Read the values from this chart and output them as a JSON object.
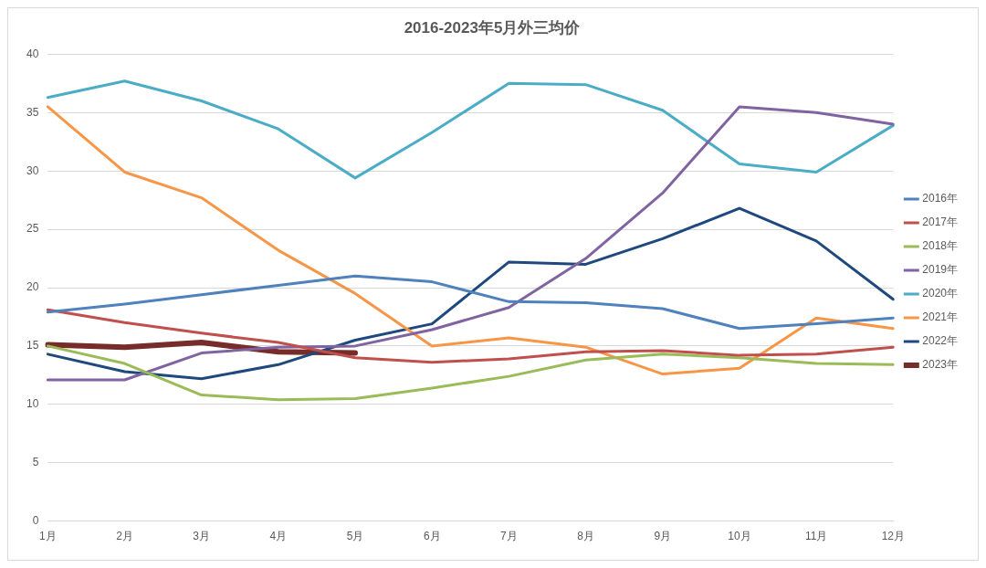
{
  "chart_data": {
    "type": "line",
    "title": "2016-2023年5月外三均价",
    "categories": [
      "1月",
      "2月",
      "3月",
      "4月",
      "5月",
      "6月",
      "7月",
      "8月",
      "9月",
      "10月",
      "11月",
      "12月"
    ],
    "ylim": [
      0,
      40
    ],
    "yticks": [
      0,
      5,
      10,
      15,
      20,
      25,
      30,
      35,
      40
    ],
    "grid": "y",
    "legend": "right",
    "marker": "none",
    "line_style": "solid",
    "series": [
      {
        "name": "2016年",
        "color": "#4f81bd",
        "values": [
          17.9,
          18.6,
          19.4,
          20.2,
          21.0,
          20.5,
          18.8,
          18.7,
          18.2,
          16.5,
          16.9,
          17.4
        ]
      },
      {
        "name": "2017年",
        "color": "#c0504d",
        "values": [
          18.1,
          17.0,
          16.1,
          15.3,
          14.0,
          13.6,
          13.9,
          14.5,
          14.6,
          14.2,
          14.3,
          14.9
        ]
      },
      {
        "name": "2018年",
        "color": "#9bbb59",
        "values": [
          15.0,
          13.5,
          10.8,
          10.4,
          10.5,
          11.4,
          12.4,
          13.8,
          14.3,
          14.0,
          13.5,
          13.4
        ]
      },
      {
        "name": "2019年",
        "color": "#8064a2",
        "values": [
          12.1,
          12.1,
          14.4,
          14.9,
          15.0,
          16.4,
          18.3,
          22.5,
          28.1,
          35.5,
          35.0,
          34.0
        ]
      },
      {
        "name": "2020年",
        "color": "#4bacc6",
        "values": [
          36.3,
          37.7,
          36.0,
          33.6,
          29.4,
          33.3,
          37.5,
          37.4,
          35.2,
          30.6,
          29.9,
          33.9
        ]
      },
      {
        "name": "2021年",
        "color": "#f79646",
        "values": [
          35.5,
          29.9,
          27.7,
          23.2,
          19.5,
          15.0,
          15.7,
          14.9,
          12.6,
          13.1,
          17.4,
          16.5
        ]
      },
      {
        "name": "2022年",
        "color": "#1f497d",
        "values": [
          14.3,
          12.8,
          12.2,
          13.4,
          15.5,
          16.9,
          22.2,
          22.0,
          24.2,
          26.8,
          24.0,
          19.0
        ]
      },
      {
        "name": "2023年",
        "color": "#772c2a",
        "values": [
          15.1,
          14.9,
          15.3,
          14.5,
          14.4,
          null,
          null,
          null,
          null,
          null,
          null,
          null
        ]
      }
    ]
  }
}
